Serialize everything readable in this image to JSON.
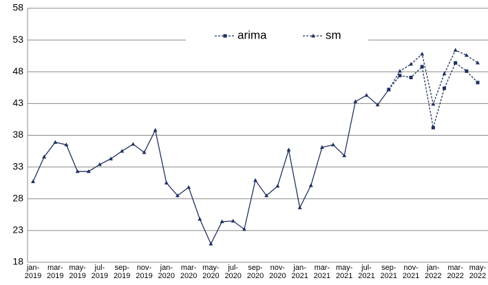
{
  "chart_data": {
    "type": "line",
    "categories": [
      "jan-2019",
      null,
      "mar-2019",
      null,
      "may-2019",
      null,
      "jul-2019",
      null,
      "sep-2019",
      null,
      "nov-2019",
      null,
      "jan-2020",
      null,
      "mar-2020",
      null,
      "may-2020",
      null,
      "jul-2020",
      null,
      "sep-2020",
      null,
      "nov-2020",
      null,
      "jan-2021",
      null,
      "mar-2021",
      null,
      "may-2021",
      null,
      "jul-2021",
      null,
      "sep-2021",
      null,
      "nov-2021",
      null,
      "jan-2022",
      null,
      "mar-2022",
      null,
      "may-2022"
    ],
    "series": [
      {
        "color": "#1f3060",
        "marker": "triangle",
        "dashed": false,
        "values": [
          30.7,
          34.6,
          36.9,
          36.5,
          32.3,
          32.3,
          33.4,
          34.3,
          35.5,
          36.6,
          35.3,
          38.8,
          30.5,
          28.5,
          29.8,
          24.8,
          20.9,
          24.4,
          24.5,
          23.2,
          30.9,
          28.5,
          30.0,
          35.7,
          26.6,
          30.1,
          36.1,
          36.5,
          34.8,
          43.3,
          44.3,
          42.8,
          45.2,
          null,
          null,
          null,
          null,
          null,
          null,
          null,
          null
        ]
      },
      {
        "name": "arima",
        "color": "#1f3060",
        "marker": "square",
        "dashed": true,
        "values": [
          null,
          null,
          null,
          null,
          null,
          null,
          null,
          null,
          null,
          null,
          null,
          null,
          null,
          null,
          null,
          null,
          null,
          null,
          null,
          null,
          null,
          null,
          null,
          null,
          null,
          null,
          null,
          null,
          null,
          null,
          null,
          null,
          45.2,
          47.4,
          47.1,
          48.8,
          39.2,
          45.4,
          49.4,
          48.1,
          46.3
        ]
      },
      {
        "name": "sm",
        "color": "#1f3060",
        "marker": "triangle",
        "dashed": true,
        "values": [
          null,
          null,
          null,
          null,
          null,
          null,
          null,
          null,
          null,
          null,
          null,
          null,
          null,
          null,
          null,
          null,
          null,
          null,
          null,
          null,
          null,
          null,
          null,
          null,
          null,
          null,
          null,
          null,
          null,
          null,
          null,
          null,
          45.2,
          48.1,
          49.2,
          50.8,
          42.9,
          47.7,
          51.4,
          50.6,
          49.4
        ]
      }
    ],
    "ylim": [
      18,
      58
    ],
    "yticks": [
      18,
      23,
      28,
      33,
      38,
      43,
      48,
      53,
      58
    ],
    "grid": true,
    "legend": "top"
  }
}
